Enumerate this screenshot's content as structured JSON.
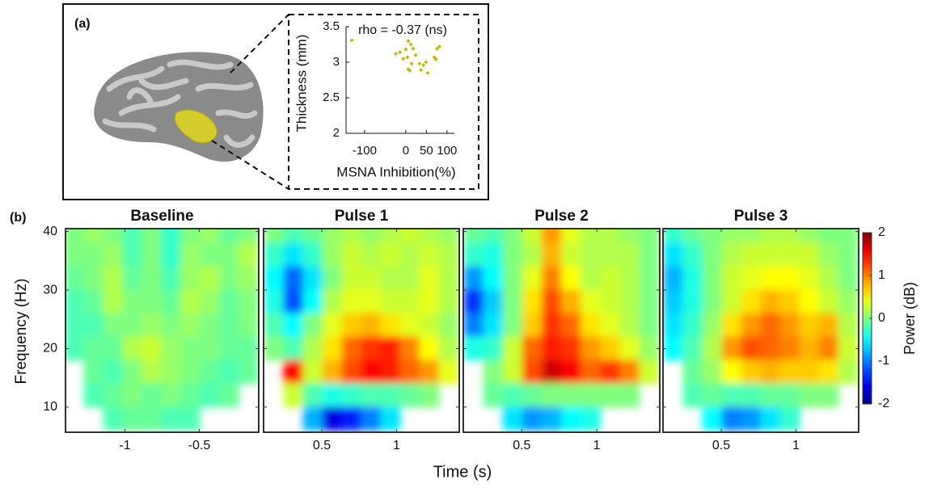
{
  "panel_a": {
    "label": "(a)"
  },
  "panel_b": {
    "label": "(b)",
    "xlabel": "Time (s)"
  },
  "chart_data": [
    {
      "type": "scatter",
      "annotation": "rho = -0.37 (ns)",
      "ylabel": "Thickness (mm)",
      "xlabel": "MSNA Inhibition(%)",
      "color": "#c8b400",
      "x": [
        -131,
        -24,
        -14,
        0,
        6,
        12,
        18,
        4,
        -6,
        24,
        14,
        6,
        10,
        33,
        43,
        49,
        37,
        53,
        76,
        82,
        73,
        69
      ],
      "y": [
        3.31,
        3.12,
        3.14,
        3.18,
        3.3,
        3.25,
        3.19,
        3.07,
        3.05,
        3.1,
        2.98,
        2.9,
        2.88,
        2.98,
        2.96,
        3.0,
        2.89,
        2.85,
        3.19,
        3.22,
        3.04,
        3.07
      ],
      "xlim": [
        -145,
        118
      ],
      "ylim": [
        2,
        3.5
      ],
      "xticks": [
        -100,
        0,
        50,
        100
      ],
      "yticks": [
        2,
        2.5,
        3,
        3.5
      ]
    },
    {
      "type": "heatmap",
      "title": "Baseline",
      "ylabel": "Frequency (Hz)",
      "x": [
        -1.34,
        -1.21,
        -1.08,
        -0.95,
        -0.82,
        -0.69,
        -0.56,
        -0.43,
        -0.3,
        -0.17
      ],
      "y": [
        40,
        36,
        32,
        28,
        24,
        20,
        16,
        12,
        8
      ],
      "z": [
        [
          0,
          0.1,
          0,
          -0.2,
          0,
          -0.3,
          0,
          0.1,
          -0.1,
          0
        ],
        [
          0,
          0,
          0.1,
          -0.2,
          0,
          -0.3,
          0.1,
          0,
          0,
          0.2
        ],
        [
          -0.1,
          0,
          0.2,
          -0.1,
          0,
          -0.2,
          0.1,
          0.2,
          0,
          0.1
        ],
        [
          -0.2,
          -0.1,
          0.2,
          0,
          0,
          -0.1,
          0.2,
          0.1,
          -0.1,
          0
        ],
        [
          -0.2,
          -0.2,
          0,
          0,
          0.1,
          0,
          0.1,
          0,
          -0.1,
          0
        ],
        [
          -0.2,
          -0.1,
          -0.1,
          0.2,
          0.3,
          0.1,
          0,
          0,
          -0.1,
          -0.1
        ],
        [
          null,
          -0.1,
          -0.2,
          0,
          0.2,
          0.1,
          0,
          -0.1,
          -0.2,
          -0.1
        ],
        [
          null,
          -0.2,
          -0.1,
          0,
          -0.1,
          0,
          -0.1,
          -0.2,
          -0.1,
          null
        ],
        [
          null,
          null,
          -0.2,
          -0.1,
          -0.1,
          -0.2,
          -0.2,
          null,
          null,
          null
        ]
      ],
      "xlim": [
        -1.4,
        -0.1
      ],
      "ylim": [
        5.7,
        40.5
      ],
      "xticks": [
        -1,
        -0.5
      ],
      "yticks": [
        10,
        20,
        30,
        40
      ]
    },
    {
      "type": "heatmap",
      "title": "Pulse 1",
      "x": [
        0.18,
        0.31,
        0.44,
        0.57,
        0.7,
        0.83,
        0.96,
        1.09,
        1.22,
        1.35
      ],
      "y": [
        40,
        36,
        32,
        28,
        24,
        20,
        16,
        12,
        8
      ],
      "z": [
        [
          0,
          -0.2,
          -0.1,
          0.1,
          0.2,
          0.1,
          0.2,
          0.3,
          0.2,
          0.1
        ],
        [
          -0.3,
          -0.6,
          -0.3,
          0.1,
          0.3,
          0.2,
          0.3,
          0.2,
          0.3,
          0.2
        ],
        [
          -0.5,
          -1.1,
          -0.6,
          0,
          0.3,
          0.3,
          0.2,
          0.2,
          0.4,
          0.2
        ],
        [
          -0.4,
          -1.2,
          -0.5,
          0.2,
          0.4,
          0.4,
          0.3,
          0.3,
          0.4,
          0.2
        ],
        [
          -0.2,
          -0.5,
          0,
          0.4,
          0.7,
          0.8,
          0.6,
          0.4,
          0.3,
          0.1
        ],
        [
          0,
          -0.2,
          0.2,
          0.6,
          1.1,
          1.3,
          1.4,
          1.0,
          0.5,
          0.2
        ],
        [
          null,
          1.5,
          0.3,
          0.8,
          1.2,
          1.5,
          1.4,
          1.1,
          0.9,
          0.4
        ],
        [
          null,
          0.3,
          -0.2,
          -0.4,
          -0.3,
          -0.2,
          -0.2,
          -0.1,
          0,
          null
        ],
        [
          null,
          null,
          -0.8,
          -1.6,
          -1.4,
          -1.0,
          -0.6,
          null,
          null,
          null
        ]
      ],
      "xlim": [
        0.11,
        1.42
      ],
      "ylim": [
        5.7,
        40.5
      ],
      "xticks": [
        0.5,
        1
      ]
    },
    {
      "type": "heatmap",
      "title": "Pulse 2",
      "x": [
        0.18,
        0.31,
        0.44,
        0.57,
        0.7,
        0.83,
        0.96,
        1.09,
        1.22,
        1.35
      ],
      "y": [
        40,
        36,
        32,
        28,
        24,
        20,
        16,
        12,
        8
      ],
      "z": [
        [
          -0.1,
          -0.2,
          0,
          0.3,
          0.9,
          0.4,
          0.2,
          0.2,
          0.1,
          0
        ],
        [
          -0.3,
          -0.4,
          0,
          0.2,
          0.8,
          0.3,
          0.2,
          0.2,
          0.2,
          0
        ],
        [
          -0.9,
          -0.5,
          0,
          0.4,
          1.0,
          0.5,
          0.2,
          0.3,
          0.2,
          0
        ],
        [
          -1.3,
          -0.7,
          0,
          0.6,
          1.2,
          0.8,
          0.4,
          0.3,
          0.2,
          0
        ],
        [
          -1.0,
          -0.6,
          0,
          0.7,
          1.3,
          1.1,
          0.6,
          0.4,
          0.2,
          0
        ],
        [
          -0.4,
          -0.3,
          0.3,
          1.1,
          1.4,
          1.3,
          0.9,
          0.7,
          0.4,
          0.1
        ],
        [
          null,
          0,
          0.3,
          1.2,
          1.7,
          1.5,
          1.1,
          1.3,
          1.0,
          0.3
        ],
        [
          null,
          -0.1,
          -0.2,
          -0.1,
          0,
          0,
          0,
          0,
          0,
          null
        ],
        [
          null,
          null,
          -0.6,
          -0.9,
          -0.8,
          -0.5,
          -0.4,
          null,
          null,
          null
        ]
      ],
      "xlim": [
        0.11,
        1.42
      ],
      "ylim": [
        5.7,
        40.5
      ],
      "xticks": [
        0.5,
        1
      ]
    },
    {
      "type": "heatmap",
      "title": "Pulse 3",
      "x": [
        0.18,
        0.31,
        0.44,
        0.57,
        0.7,
        0.83,
        0.96,
        1.09,
        1.22,
        1.35
      ],
      "y": [
        40,
        36,
        32,
        28,
        24,
        20,
        16,
        12,
        8
      ],
      "z": [
        [
          -0.3,
          -0.1,
          0,
          0.1,
          0.1,
          0.2,
          0.2,
          0.1,
          0,
          0
        ],
        [
          -0.6,
          -0.3,
          0,
          0.2,
          0.3,
          0.3,
          0.3,
          0.3,
          0.1,
          0
        ],
        [
          -0.8,
          -0.4,
          0,
          0.3,
          0.4,
          0.5,
          0.5,
          0.4,
          0.2,
          0
        ],
        [
          -0.7,
          -0.4,
          0,
          0.3,
          0.6,
          0.8,
          0.7,
          0.5,
          0.3,
          0.1
        ],
        [
          -0.6,
          -0.3,
          0.1,
          0.6,
          0.9,
          1.1,
          0.9,
          0.7,
          0.8,
          0.2
        ],
        [
          -0.5,
          -0.2,
          0.2,
          0.9,
          1.2,
          1.1,
          1.0,
          0.8,
          1.0,
          0.3
        ],
        [
          null,
          -0.1,
          0.1,
          0.5,
          0.7,
          0.8,
          0.7,
          0.7,
          0.6,
          0.2
        ],
        [
          null,
          -0.2,
          -0.1,
          -0.2,
          -0.2,
          -0.1,
          -0.1,
          0,
          0,
          null
        ],
        [
          null,
          null,
          -0.5,
          -1.0,
          -0.9,
          -0.6,
          -0.3,
          null,
          null,
          null
        ]
      ],
      "xlim": [
        0.11,
        1.42
      ],
      "ylim": [
        5.7,
        40.5
      ],
      "xticks": [
        0.5,
        1
      ]
    },
    {
      "type": "colorbar",
      "label": "Power (dB)",
      "ylim": [
        -2,
        2
      ],
      "yticks": [
        -2,
        -1,
        0,
        1,
        2
      ]
    }
  ]
}
